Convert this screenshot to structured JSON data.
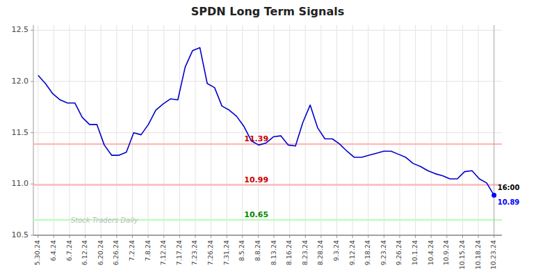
{
  "chart_data": {
    "type": "line",
    "title": "SPDN Long Term Signals",
    "color": "#0000cc",
    "grid": true,
    "xlim": [
      -0.3,
      29.5
    ],
    "xticks": [
      {
        "value": 0,
        "label": "5.30.24"
      },
      {
        "value": 1,
        "label": "6.4.24"
      },
      {
        "value": 2,
        "label": "6.7.24"
      },
      {
        "value": 3,
        "label": "6.12.24"
      },
      {
        "value": 4,
        "label": "6.20.24"
      },
      {
        "value": 5,
        "label": "6.26.24"
      },
      {
        "value": 6,
        "label": "7.2.24"
      },
      {
        "value": 7,
        "label": "7.8.24"
      },
      {
        "value": 8,
        "label": "7.12.24"
      },
      {
        "value": 9,
        "label": "7.17.24"
      },
      {
        "value": 10,
        "label": "7.23.24"
      },
      {
        "value": 11,
        "label": "7.26.24"
      },
      {
        "value": 12,
        "label": "7.31.24"
      },
      {
        "value": 13,
        "label": "8.5.24"
      },
      {
        "value": 14,
        "label": "8.8.24"
      },
      {
        "value": 15,
        "label": "8.13.24"
      },
      {
        "value": 16,
        "label": "8.16.24"
      },
      {
        "value": 17,
        "label": "8.23.24"
      },
      {
        "value": 18,
        "label": "8.28.24"
      },
      {
        "value": 19,
        "label": "9.3.24"
      },
      {
        "value": 20,
        "label": "9.12.24"
      },
      {
        "value": 21,
        "label": "9.18.24"
      },
      {
        "value": 22,
        "label": "9.23.24"
      },
      {
        "value": 23,
        "label": "9.26.24"
      },
      {
        "value": 24,
        "label": "10.1.24"
      },
      {
        "value": 25,
        "label": "10.4.24"
      },
      {
        "value": 26,
        "label": "10.9.24"
      },
      {
        "value": 27,
        "label": "10.15.24"
      },
      {
        "value": 28,
        "label": "10.18.24"
      },
      {
        "value": 29,
        "label": "10.23.24"
      }
    ],
    "ylim": [
      10.5,
      12.55
    ],
    "yticks": [
      10.5,
      {
        "value": 11,
        "label": "11.0"
      },
      11.5,
      {
        "value": 12,
        "label": "12.0"
      },
      12.5
    ],
    "values": [
      12.06,
      11.98,
      11.88,
      11.82,
      11.79,
      11.79,
      11.65,
      11.58,
      11.58,
      11.38,
      11.28,
      11.28,
      11.31,
      11.5,
      11.48,
      11.58,
      11.72,
      11.78,
      11.83,
      11.82,
      12.14,
      12.3,
      12.33,
      11.98,
      11.94,
      11.76,
      11.72,
      11.66,
      11.56,
      11.42,
      11.38,
      11.4,
      11.46,
      11.47,
      11.38,
      11.37,
      11.6,
      11.77,
      11.55,
      11.44,
      11.44,
      11.39,
      11.32,
      11.26,
      11.26,
      11.28,
      11.3,
      11.32,
      11.32,
      11.29,
      11.26,
      11.2,
      11.17,
      11.13,
      11.1,
      11.08,
      11.05,
      11.05,
      11.12,
      11.13,
      11.05,
      11.01,
      10.89
    ],
    "reference_lines": [
      {
        "value": 11.39,
        "label": "11.39",
        "color": "#ffb3b3",
        "label_color": "#cc0000"
      },
      {
        "value": 10.99,
        "label": "10.99",
        "color": "#ffb3b3",
        "label_color": "#cc0000"
      },
      {
        "value": 10.65,
        "label": "10.65",
        "color": "#b3ffb3",
        "label_color": "#008800"
      }
    ],
    "end_labels": [
      {
        "text": "16:00",
        "color": "#000000"
      },
      {
        "text": "10.89",
        "color": "#0000ff"
      }
    ],
    "watermark": {
      "text": "Stock Traders Daily",
      "color": "#bbbbbb"
    }
  }
}
